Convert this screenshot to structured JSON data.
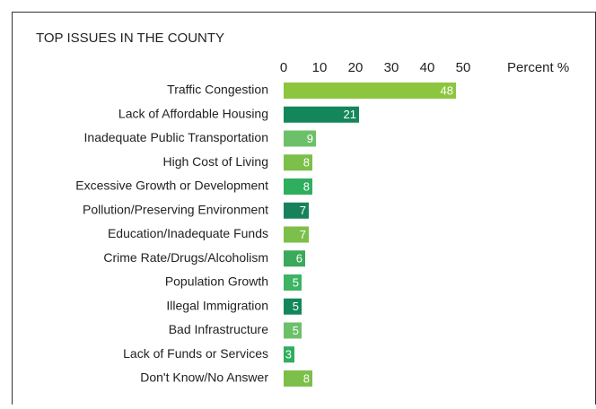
{
  "chart_data": {
    "type": "barh",
    "title": "TOP ISSUES IN THE COUNTY",
    "x_label": "Percent %",
    "categories": [
      "Traffic Congestion",
      "Lack of Affordable Housing",
      "Inadequate Public Transportation",
      "High Cost of Living",
      "Excessive Growth or Development",
      "Pollution/Preserving Environment",
      "Education/Inadequate Funds",
      "Crime Rate/Drugs/Alcoholism",
      "Population Growth",
      "Illegal Immigration",
      "Bad Infrastructure",
      "Lack of Funds or Services",
      "Don't Know/No Answer"
    ],
    "values": [
      48,
      21,
      9,
      8,
      8,
      7,
      7,
      6,
      5,
      5,
      5,
      3,
      8
    ],
    "colors": [
      "#8cc63f",
      "#13875a",
      "#6cc069",
      "#7cbf4a",
      "#2fae5e",
      "#17825a",
      "#7cbf4a",
      "#3aa95a",
      "#3cb463",
      "#13875a",
      "#6cc069",
      "#2fae5e",
      "#7cbf4a"
    ],
    "xlim": [
      0,
      50
    ],
    "xticks": [
      0,
      10,
      20,
      30,
      40,
      50
    ]
  }
}
